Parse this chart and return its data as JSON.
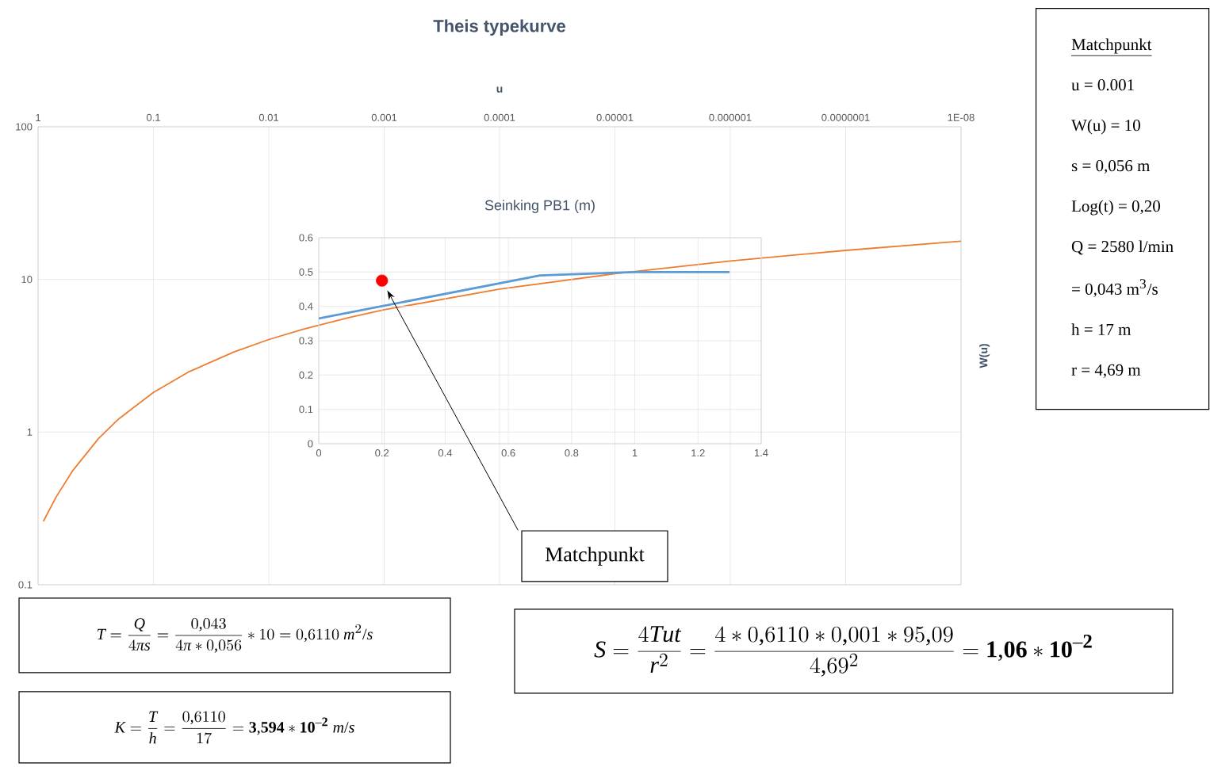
{
  "chart_data": [
    {
      "type": "line",
      "title": "Theis typekurve",
      "xlabel": "u",
      "ylabel": "W(u)",
      "log": "xy",
      "grid": true,
      "marker": "none",
      "x": [
        0.9,
        0.7,
        0.5,
        0.3,
        0.2,
        0.1,
        0.05,
        0.02,
        0.01,
        0.005,
        0.002,
        0.001,
        0.0001,
        1e-05,
        1e-06,
        1e-07,
        1e-08
      ],
      "series": [
        {
          "color": "#ed7d31",
          "values": [
            0.26,
            0.374,
            0.56,
            0.906,
            1.22,
            1.82,
            2.47,
            3.35,
            4.04,
            4.73,
            5.64,
            6.33,
            8.63,
            10.9,
            13.2,
            15.5,
            17.8
          ]
        }
      ],
      "xlim": [
        1,
        1e-08
      ],
      "ylim": [
        0.1,
        100
      ],
      "xticks": [
        1,
        0.1,
        0.01,
        0.001,
        0.0001,
        {
          "value": 1e-05,
          "label": "0.00001"
        },
        {
          "value": 1e-06,
          "label": "0.000001"
        },
        {
          "value": 1e-07,
          "label": "0.0000001"
        },
        {
          "value": 1e-08,
          "label": "1E-08"
        }
      ],
      "yticks": [
        0.1,
        1,
        10,
        100
      ]
    },
    {
      "type": "line",
      "title": "Seinking PB1 (m)",
      "grid": true,
      "x": [
        0,
        0.7,
        1,
        1.3
      ],
      "series": [
        {
          "color": "#5b9bd5",
          "values": [
            0.365,
            0.49,
            0.5,
            0.5
          ]
        },
        {
          "type": "scatter",
          "x": [
            0.2
          ],
          "values": [
            0.475
          ],
          "color": "#ff0000"
        }
      ],
      "xlim": [
        0,
        1.4
      ],
      "xticks": [
        0,
        0.2,
        0.4,
        0.6,
        0.8,
        1,
        1.2,
        1.4
      ],
      "ylim": [
        0,
        0.6
      ],
      "yticks": [
        0,
        0.1,
        0.2,
        0.3,
        0.4,
        0.5,
        0.6
      ],
      "annotations": [
        "Matchpunkt"
      ]
    },
    {
      "type": "other",
      "title": "Matchpunkt",
      "annotations": [
        "u = 0.001",
        "W(u) = 10",
        "s = 0,056 m",
        "Log(t) = 0,20",
        "Q = 2580 l/min",
        "= 0,043 m$^{3}$/s",
        "h = 17 m",
        "r = 4,69 m"
      ]
    },
    {
      "type": "other",
      "annotations": [
        "T = \\frac{Q}{4\\mbox{\\itshape π}s} = \\frac{0{,}043}{4\\mbox{\\itshape π} * 0{,}056} * 10 = 0{,}6110\\ m^{2}/s",
        "K = \\frac{T}{h} = \\frac{0{,}6110}{17} = \\mathbf{3{,}594 * 10^{-2}}\\ m/s",
        "S = \\frac{4Tut}{r^{2}} = \\frac{4*0{,}6110*0{,}001*95{,}09}{4{,}69^{2}} = \\mathbf{1{,}06 * 10^{-2}}"
      ]
    }
  ]
}
